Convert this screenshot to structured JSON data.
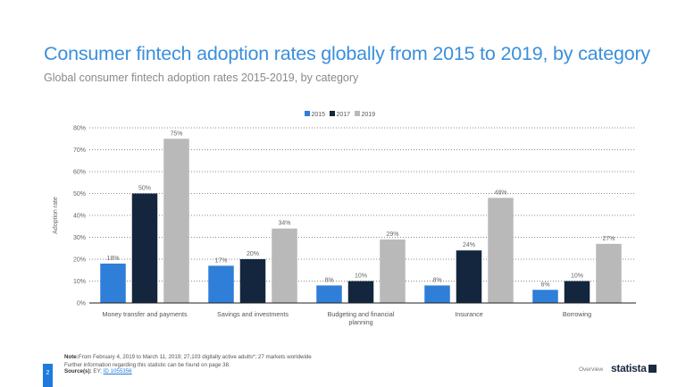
{
  "header": {
    "title": "Consumer fintech adoption rates globally from 2015 to 2019, by category",
    "subtitle": "Global consumer fintech adoption rates 2015-2019, by category"
  },
  "chart_data": {
    "type": "bar",
    "categories": [
      "Money transfer and payments",
      "Savings and investments",
      "Budgeting and financial planning",
      "Insurance",
      "Borrowing"
    ],
    "category_label_lines": [
      [
        "Money transfer and payments"
      ],
      [
        "Savings and investments"
      ],
      [
        "Budgeting and financial",
        "planning"
      ],
      [
        "Insurance"
      ],
      [
        "Borrowing"
      ]
    ],
    "series": [
      {
        "name": "2015",
        "color": "#2f7ed8",
        "values": [
          18,
          17,
          8,
          8,
          6
        ]
      },
      {
        "name": "2017",
        "color": "#13263d",
        "values": [
          50,
          20,
          10,
          24,
          10
        ]
      },
      {
        "name": "2019",
        "color": "#b9b9b9",
        "values": [
          75,
          34,
          29,
          48,
          27
        ]
      }
    ],
    "ylabel": "Adoption rate",
    "xlabel": "",
    "ylim": [
      0,
      80
    ],
    "yticks": [
      0,
      10,
      20,
      30,
      40,
      50,
      60,
      70,
      80
    ],
    "tick_suffix": "%",
    "grid": true,
    "legend": "top-center",
    "data_labels": true
  },
  "footer": {
    "note_label": "Note:",
    "note": "From February 4, 2019 to March 11, 2019; 27,103 digitally active adults*;  27 markets worldwide",
    "further": "Further information regarding this statistic can be found on page 38.",
    "source_label": "Source(s):",
    "source": " EY; ",
    "source_link": "ID 1055356",
    "page": "2",
    "overview": "Overview",
    "logo": "statista"
  }
}
